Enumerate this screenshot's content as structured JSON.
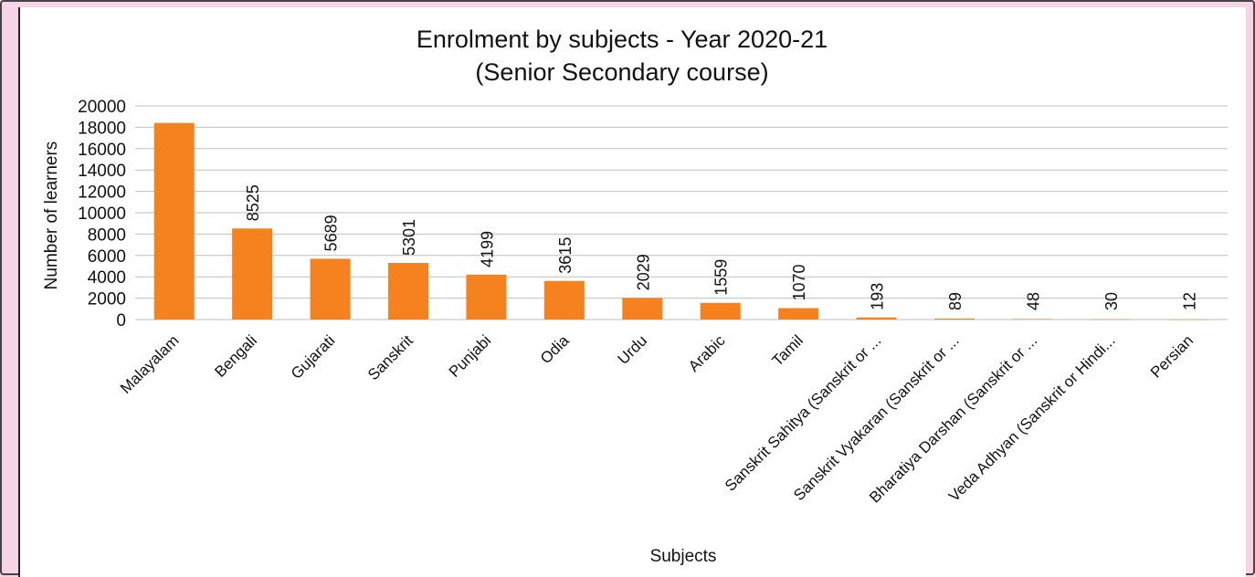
{
  "chart_data": {
    "type": "bar",
    "title": "Enrolment by subjects - Year 2020-21",
    "subtitle": "(Senior Secondary course)",
    "xlabel": "Subjects",
    "ylabel": "Number of learners",
    "ylim": [
      0,
      20000
    ],
    "yticks": [
      0,
      2000,
      4000,
      6000,
      8000,
      10000,
      12000,
      14000,
      16000,
      18000,
      20000
    ],
    "grid": true,
    "legend": "none",
    "colors": {
      "bar": "#f5821f",
      "grid": "#bfbfbf",
      "frame": "#f6d3e6"
    },
    "categories": [
      "Malayalam",
      "Bengali",
      "Gujarati",
      "Sanskrit",
      "Punjabi",
      "Odia",
      "Urdu",
      "Arabic",
      "Tamil",
      "Sanskrit Sahitya (Sanskrit or ...",
      "Sanskrit Vyakaran (Sanskrit or ...",
      "Bharatiya Darshan (Sanskrit or ...",
      "Veda Adhyan (Sanskrit or Hindi...",
      "Persian"
    ],
    "values": [
      18400,
      8525,
      5689,
      5301,
      4199,
      3615,
      2029,
      1559,
      1070,
      193,
      89,
      48,
      30,
      12
    ],
    "data_labels": [
      "",
      "8525",
      "5689",
      "5301",
      "4199",
      "3615",
      "2029",
      "1559",
      "1070",
      "193",
      "89",
      "48",
      "30",
      "12"
    ]
  }
}
